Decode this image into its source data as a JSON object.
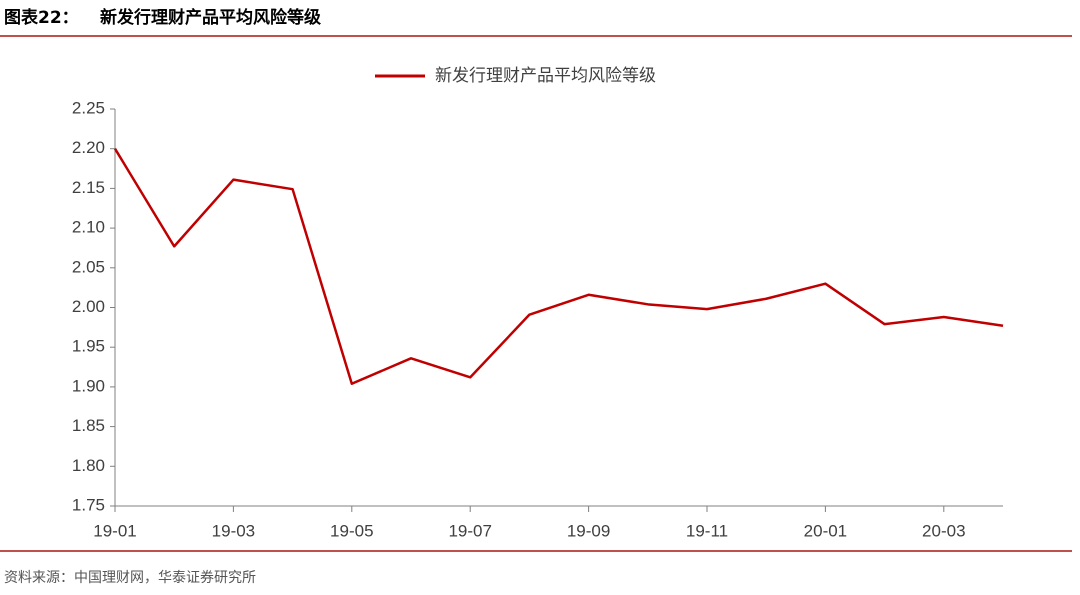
{
  "chart_data": {
    "type": "line",
    "figure_label": "图表22：",
    "title": "新发行理财产品平均风险等级",
    "source": "资料来源：中国理财网，华泰证券研究所",
    "categories": [
      "19-01",
      null,
      "19-03",
      null,
      "19-05",
      null,
      "19-07",
      null,
      "19-09",
      null,
      "19-11",
      null,
      "20-01",
      null,
      "20-03",
      null
    ],
    "series": [
      {
        "name": "新发行理财产品平均风险等级",
        "color": "#c00000",
        "values": [
          2.2,
          2.077,
          2.161,
          2.149,
          1.904,
          1.936,
          1.912,
          1.991,
          2.016,
          2.004,
          1.998,
          2.011,
          2.03,
          1.979,
          1.988,
          1.977
        ]
      }
    ],
    "ylim": [
      1.75,
      2.25
    ],
    "yticks": [
      {
        "value": 1.75,
        "label": "1.75"
      },
      {
        "value": 1.8,
        "label": "1.80"
      },
      {
        "value": 1.85,
        "label": "1.85"
      },
      {
        "value": 1.9,
        "label": "1.90"
      },
      {
        "value": 1.95,
        "label": "1.95"
      },
      {
        "value": 2.0,
        "label": "2.00"
      },
      {
        "value": 2.05,
        "label": "2.05"
      },
      {
        "value": 2.1,
        "label": "2.10"
      },
      {
        "value": 2.15,
        "label": "2.15"
      },
      {
        "value": 2.2,
        "label": "2.20"
      },
      {
        "value": 2.25,
        "label": "2.25"
      }
    ],
    "grid": false,
    "legend": "top"
  }
}
